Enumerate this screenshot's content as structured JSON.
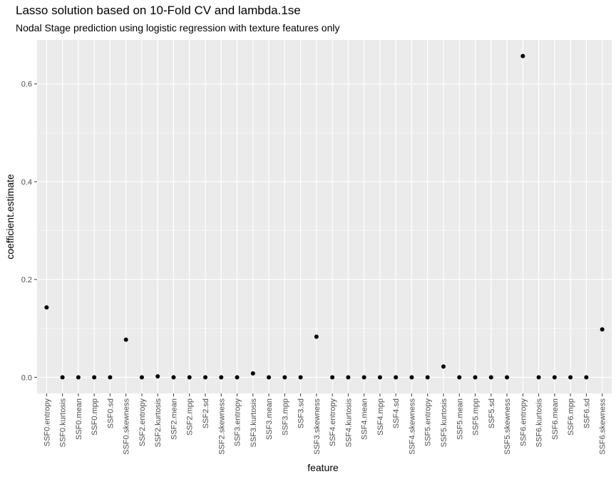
{
  "chart_data": {
    "type": "scatter",
    "title": "Lasso solution based on 10-Fold CV and lambda.1se",
    "subtitle": "Nodal Stage prediction using logistic regression with texture features only",
    "xlabel": "feature",
    "ylabel": "coefficient.estimate",
    "ylim": [
      -0.033,
      0.69
    ],
    "yticks": [
      0.0,
      0.2,
      0.4,
      0.6
    ],
    "ytick_labels": [
      "0.0",
      "0.2",
      "0.4",
      "0.6"
    ],
    "grid": true,
    "categories": [
      "SSF0.entropy",
      "SSF0.kurtosis",
      "SSF0.mean",
      "SSF0.mpp",
      "SSF0.sd",
      "SSF0.skewness",
      "SSF2.entropy",
      "SSF2.kurtosis",
      "SSF2.mean",
      "SSF2.mpp",
      "SSF2.sd",
      "SSF2.skewness",
      "SSF3.entropy",
      "SSF3.kurtosis",
      "SSF3.mean",
      "SSF3.mpp",
      "SSF3.sd",
      "SSF3.skewness",
      "SSF4.entropy",
      "SSF4.kurtosis",
      "SSF4.mean",
      "SSF4.mpp",
      "SSF4.sd",
      "SSF4.skewness",
      "SSF5.entropy",
      "SSF5.kurtosis",
      "SSF5.mean",
      "SSF5.mpp",
      "SSF5.sd",
      "SSF5.skewness",
      "SSF6.entropy",
      "SSF6.kurtosis",
      "SSF6.mean",
      "SSF6.mpp",
      "SSF6.sd",
      "SSF6.skewness"
    ],
    "values": [
      0.143,
      0.0,
      0.0,
      0.0,
      0.0,
      0.077,
      0.0,
      0.002,
      0.0,
      0.0,
      0.0,
      0.0,
      0.0,
      0.008,
      0.0,
      0.0,
      0.0,
      0.083,
      0.0,
      0.0,
      0.0,
      0.0,
      0.0,
      0.0,
      0.0,
      0.022,
      0.0,
      0.0,
      0.0,
      0.0,
      0.657,
      0.0,
      0.0,
      0.0,
      0.0,
      0.098
    ],
    "colors": {
      "panel": "#ebebeb",
      "grid_major": "#ffffff",
      "grid_minor": "#f5f5f5",
      "point": "#000000",
      "tick": "#333333"
    }
  }
}
